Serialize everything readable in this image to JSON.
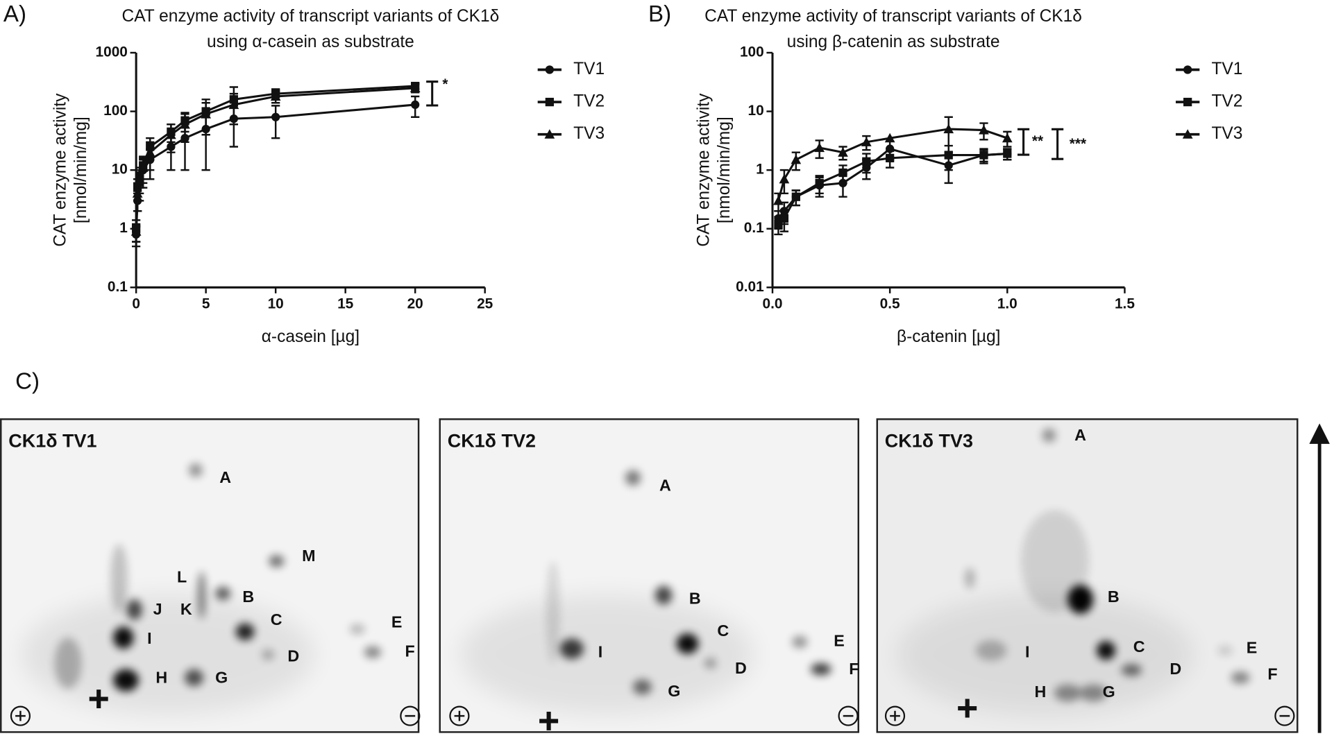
{
  "panel_labels": [
    "A)",
    "B)",
    "C)"
  ],
  "chart_data": [
    {
      "type": "scatter",
      "title_lines": [
        "CAT enzyme activity of transcript variants of CK1δ",
        "using α-casein as substrate"
      ],
      "x_label": "α-casein [µg]",
      "y_label_lines": [
        "CAT enzyme activity",
        "[nmol/min/mg]"
      ],
      "x": [
        0,
        0.1,
        0.25,
        0.5,
        1,
        2.5,
        3.5,
        5,
        7,
        10,
        20
      ],
      "series": [
        {
          "name": "TV1",
          "color": "#111111",
          "marker": "circle",
          "values": [
            0.8,
            3,
            6,
            10,
            15,
            25,
            35,
            50,
            75,
            80,
            130
          ],
          "errors": [
            0.3,
            1,
            3,
            5,
            8,
            15,
            25,
            40,
            50,
            45,
            50
          ]
        },
        {
          "name": "TV2",
          "color": "#111111",
          "marker": "square",
          "values": [
            1,
            5,
            8,
            12,
            25,
            45,
            70,
            100,
            160,
            200,
            270
          ],
          "errors": [
            0.4,
            2,
            3,
            5,
            10,
            15,
            25,
            60,
            100,
            40,
            30
          ]
        },
        {
          "name": "TV3",
          "color": "#111111",
          "marker": "triangle",
          "values": [
            0.9,
            4,
            7,
            11,
            20,
            40,
            60,
            90,
            130,
            180,
            250
          ],
          "errors": [
            0.3,
            2,
            3,
            5,
            10,
            20,
            30,
            50,
            70,
            40,
            40
          ]
        }
      ],
      "xlim": [
        0,
        25
      ],
      "xticks": [
        0,
        5,
        10,
        15,
        20,
        25
      ],
      "ylim": [
        0.1,
        1000
      ],
      "yticks": [
        0.1,
        1,
        10,
        100,
        1000
      ],
      "log_y": true,
      "annotations": [
        "*"
      ]
    },
    {
      "type": "scatter",
      "title_lines": [
        "CAT enzyme activity of transcript variants of CK1δ",
        "using β-catenin as substrate"
      ],
      "x_label": "β-catenin [µg]",
      "y_label_lines": [
        "CAT enzyme activity",
        "[nmol/min/mg]"
      ],
      "x": [
        0.025,
        0.05,
        0.1,
        0.2,
        0.3,
        0.4,
        0.5,
        0.75,
        0.9,
        1.0
      ],
      "series": [
        {
          "name": "TV1",
          "color": "#111111",
          "marker": "circle",
          "values": [
            0.15,
            0.2,
            0.35,
            0.55,
            0.6,
            1.1,
            2.3,
            1.2,
            1.8,
            1.9
          ],
          "errors": [
            0.05,
            0.08,
            0.1,
            0.2,
            0.25,
            0.4,
            0.8,
            0.6,
            0.4,
            0.4
          ]
        },
        {
          "name": "TV2",
          "color": "#111111",
          "marker": "square",
          "values": [
            0.12,
            0.15,
            0.35,
            0.6,
            0.9,
            1.4,
            1.6,
            1.8,
            1.8,
            1.9
          ],
          "errors": [
            0.04,
            0.06,
            0.1,
            0.2,
            0.3,
            0.5,
            0.5,
            0.8,
            0.5,
            0.4
          ]
        },
        {
          "name": "TV3",
          "color": "#111111",
          "marker": "triangle",
          "values": [
            0.3,
            0.7,
            1.5,
            2.4,
            2.0,
            3.0,
            3.5,
            5.0,
            4.8,
            3.5
          ],
          "errors": [
            0.1,
            0.3,
            0.5,
            0.8,
            0.5,
            0.8,
            3.5,
            3.0,
            1.5,
            1.0
          ]
        }
      ],
      "xlim": [
        0,
        1.5
      ],
      "xticks": [
        {
          "value": 0,
          "label": "0.0"
        },
        {
          "value": 0.5,
          "label": "0.5"
        },
        {
          "value": 1,
          "label": "1.0"
        },
        {
          "value": 1.5,
          "label": "1.5"
        }
      ],
      "ylim": [
        0.01,
        100
      ],
      "yticks": [
        0.01,
        0.1,
        1,
        10,
        100
      ],
      "log_y": true,
      "annotations": [
        "**",
        "***"
      ]
    }
  ],
  "gels": [
    {
      "title": "CK1δ TV1",
      "spot_labels": [
        "A",
        "M",
        "L",
        "K",
        "B",
        "J",
        "I",
        "C",
        "D",
        "E",
        "F",
        "H",
        "G"
      ]
    },
    {
      "title": "CK1δ TV2",
      "spot_labels": [
        "A",
        "B",
        "I",
        "C",
        "D",
        "E",
        "F",
        "G"
      ]
    },
    {
      "title": "CK1δ TV3",
      "spot_labels": [
        "A",
        "B",
        "I",
        "C",
        "D",
        "E",
        "F",
        "H",
        "G"
      ]
    }
  ]
}
